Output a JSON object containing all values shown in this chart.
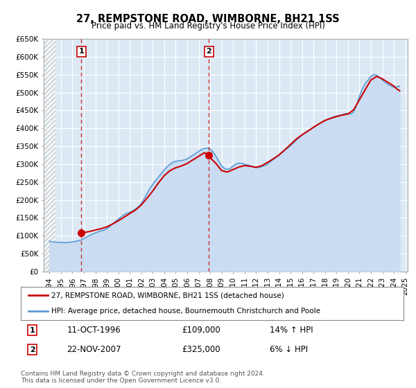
{
  "title": "27, REMPSTONE ROAD, WIMBORNE, BH21 1SS",
  "subtitle": "Price paid vs. HM Land Registry's House Price Index (HPI)",
  "ylabel": "",
  "ylim": [
    0,
    650000
  ],
  "yticks": [
    0,
    50000,
    100000,
    150000,
    200000,
    250000,
    300000,
    350000,
    400000,
    450000,
    500000,
    550000,
    600000,
    650000
  ],
  "ytick_labels": [
    "£0",
    "£50K",
    "£100K",
    "£150K",
    "£200K",
    "£250K",
    "£300K",
    "£350K",
    "£400K",
    "£450K",
    "£500K",
    "£550K",
    "£600K",
    "£650K"
  ],
  "background_color": "#ffffff",
  "plot_bg_color": "#dce9f5",
  "hatch_end_year": 1994.5,
  "marker1": {
    "year": 1996.79,
    "value": 109000,
    "label": "1"
  },
  "marker2": {
    "year": 2007.9,
    "value": 325000,
    "label": "2"
  },
  "vline1_year": 1996.79,
  "vline2_year": 2007.9,
  "legend_line1": "27, REMPSTONE ROAD, WIMBORNE, BH21 1SS (detached house)",
  "legend_line2": "HPI: Average price, detached house, Bournemouth Christchurch and Poole",
  "info1_num": "1",
  "info1_date": "11-OCT-1996",
  "info1_price": "£109,000",
  "info1_hpi": "14% ↑ HPI",
  "info2_num": "2",
  "info2_date": "22-NOV-2007",
  "info2_price": "£325,000",
  "info2_hpi": "6% ↓ HPI",
  "footer": "Contains HM Land Registry data © Crown copyright and database right 2024.\nThis data is licensed under the Open Government Licence v3.0.",
  "red_line_color": "#cc0000",
  "blue_line_color": "#5b9bd5",
  "blue_fill_color": "#c5d9f0",
  "hpi_data": {
    "years": [
      1994.0,
      1994.25,
      1994.5,
      1994.75,
      1995.0,
      1995.25,
      1995.5,
      1995.75,
      1996.0,
      1996.25,
      1996.5,
      1996.75,
      1997.0,
      1997.25,
      1997.5,
      1997.75,
      1998.0,
      1998.25,
      1998.5,
      1998.75,
      1999.0,
      1999.25,
      1999.5,
      1999.75,
      2000.0,
      2000.25,
      2000.5,
      2000.75,
      2001.0,
      2001.25,
      2001.5,
      2001.75,
      2002.0,
      2002.25,
      2002.5,
      2002.75,
      2003.0,
      2003.25,
      2003.5,
      2003.75,
      2004.0,
      2004.25,
      2004.5,
      2004.75,
      2005.0,
      2005.25,
      2005.5,
      2005.75,
      2006.0,
      2006.25,
      2006.5,
      2006.75,
      2007.0,
      2007.25,
      2007.5,
      2007.75,
      2008.0,
      2008.25,
      2008.5,
      2008.75,
      2009.0,
      2009.25,
      2009.5,
      2009.75,
      2010.0,
      2010.25,
      2010.5,
      2010.75,
      2011.0,
      2011.25,
      2011.5,
      2011.75,
      2012.0,
      2012.25,
      2012.5,
      2012.75,
      2013.0,
      2013.25,
      2013.5,
      2013.75,
      2014.0,
      2014.25,
      2014.5,
      2014.75,
      2015.0,
      2015.25,
      2015.5,
      2015.75,
      2016.0,
      2016.25,
      2016.5,
      2016.75,
      2017.0,
      2017.25,
      2017.5,
      2017.75,
      2018.0,
      2018.25,
      2018.5,
      2018.75,
      2019.0,
      2019.25,
      2019.5,
      2019.75,
      2020.0,
      2020.25,
      2020.5,
      2020.75,
      2021.0,
      2021.25,
      2021.5,
      2021.75,
      2022.0,
      2022.25,
      2022.5,
      2022.75,
      2023.0,
      2023.25,
      2023.5,
      2023.75,
      2024.0,
      2024.25,
      2024.5
    ],
    "values": [
      85000,
      83000,
      82000,
      82000,
      82000,
      81000,
      81000,
      82000,
      83000,
      84000,
      86000,
      88000,
      92000,
      97000,
      101000,
      105000,
      108000,
      111000,
      114000,
      116000,
      120000,
      126000,
      133000,
      140000,
      147000,
      153000,
      159000,
      163000,
      166000,
      170000,
      175000,
      181000,
      190000,
      203000,
      218000,
      232000,
      244000,
      254000,
      264000,
      274000,
      284000,
      293000,
      300000,
      305000,
      308000,
      309000,
      310000,
      312000,
      315000,
      320000,
      325000,
      330000,
      336000,
      341000,
      344000,
      345000,
      342000,
      334000,
      322000,
      308000,
      295000,
      288000,
      285000,
      288000,
      295000,
      300000,
      303000,
      302000,
      300000,
      298000,
      296000,
      293000,
      291000,
      291000,
      293000,
      296000,
      300000,
      307000,
      313000,
      319000,
      325000,
      332000,
      339000,
      345000,
      352000,
      359000,
      367000,
      374000,
      381000,
      388000,
      393000,
      397000,
      403000,
      408000,
      413000,
      418000,
      422000,
      426000,
      429000,
      432000,
      434000,
      436000,
      438000,
      441000,
      442000,
      440000,
      446000,
      465000,
      490000,
      510000,
      525000,
      535000,
      545000,
      550000,
      548000,
      543000,
      535000,
      528000,
      522000,
      518000,
      515000,
      516000,
      518000
    ]
  },
  "property_data": {
    "years": [
      1994.0,
      1996.79,
      2007.9,
      2024.5
    ],
    "values": [
      null,
      109000,
      325000,
      null
    ]
  },
  "red_line_data": {
    "years": [
      1994.0,
      1994.5,
      1995.0,
      1995.5,
      1996.0,
      1996.5,
      1996.79,
      1997.0,
      1997.5,
      1998.0,
      1998.5,
      1999.0,
      1999.5,
      2000.0,
      2000.5,
      2001.0,
      2001.5,
      2002.0,
      2002.5,
      2003.0,
      2003.5,
      2004.0,
      2004.5,
      2005.0,
      2005.5,
      2006.0,
      2006.5,
      2007.0,
      2007.5,
      2007.9,
      2008.0,
      2008.5,
      2009.0,
      2009.5,
      2010.0,
      2010.5,
      2011.0,
      2011.5,
      2012.0,
      2012.5,
      2013.0,
      2013.5,
      2014.0,
      2014.5,
      2015.0,
      2015.5,
      2016.0,
      2016.5,
      2017.0,
      2017.5,
      2018.0,
      2018.5,
      2019.0,
      2019.5,
      2020.0,
      2020.5,
      2021.0,
      2021.5,
      2022.0,
      2022.5,
      2023.0,
      2023.5,
      2024.0,
      2024.25,
      2024.5
    ],
    "values": [
      null,
      null,
      null,
      null,
      null,
      null,
      109000,
      109000,
      112000,
      116000,
      120000,
      125000,
      133000,
      142000,
      152000,
      162000,
      172000,
      186000,
      205000,
      225000,
      248000,
      268000,
      282000,
      290000,
      295000,
      302000,
      312000,
      322000,
      332000,
      325000,
      318000,
      302000,
      282000,
      278000,
      285000,
      292000,
      296000,
      294000,
      291000,
      296000,
      305000,
      315000,
      326000,
      340000,
      355000,
      370000,
      382000,
      392000,
      403000,
      413000,
      422000,
      428000,
      433000,
      437000,
      440000,
      452000,
      480000,
      508000,
      535000,
      545000,
      538000,
      528000,
      518000,
      510000,
      505000
    ]
  },
  "xlim_start": 1993.5,
  "xlim_end": 2025.2,
  "xtick_years": [
    1994,
    1995,
    1996,
    1997,
    1998,
    1999,
    2000,
    2001,
    2002,
    2003,
    2004,
    2005,
    2006,
    2007,
    2008,
    2009,
    2010,
    2011,
    2012,
    2013,
    2014,
    2015,
    2016,
    2017,
    2018,
    2019,
    2020,
    2021,
    2022,
    2023,
    2024,
    2025
  ]
}
